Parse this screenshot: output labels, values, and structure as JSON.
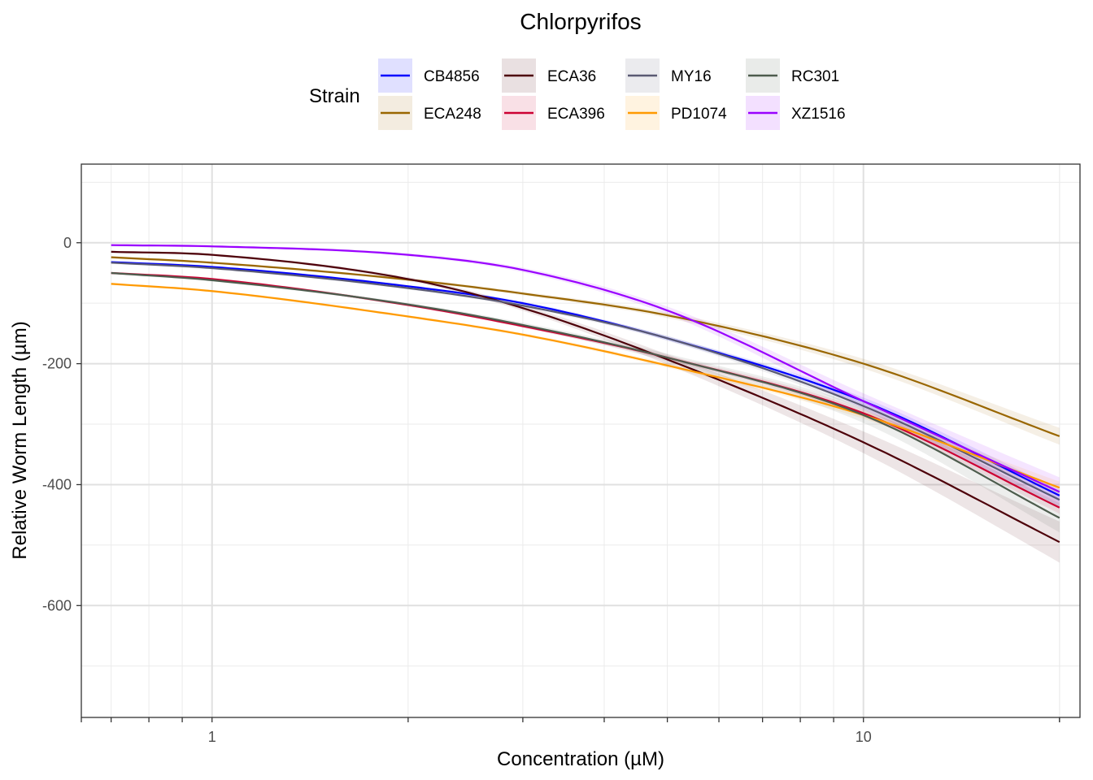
{
  "chart_data": {
    "type": "line",
    "title": "Chlorpyrifos",
    "xlabel": "Concentration (µM)",
    "ylabel": "Relative Worm Length (µm)",
    "x_scale": "log10",
    "xlim": [
      0.63,
      21.5
    ],
    "ylim": [
      -785,
      130
    ],
    "x_ticks": [
      {
        "value": 1,
        "label": "1"
      },
      {
        "value": 10,
        "label": "10"
      }
    ],
    "y_ticks": [
      {
        "value": 0,
        "label": "0"
      },
      {
        "value": -200,
        "label": "-200"
      },
      {
        "value": -400,
        "label": "-400"
      },
      {
        "value": -600,
        "label": "-600"
      }
    ],
    "grid": true,
    "legend": {
      "title": "Strain",
      "placement": "top",
      "entries": [
        "CB4856",
        "ECA248",
        "ECA36",
        "ECA396",
        "MY16",
        "PD1074",
        "RC301",
        "XZ1516"
      ]
    },
    "x": [
      0.7,
      1,
      2,
      3,
      5,
      10,
      20
    ],
    "series": [
      {
        "name": "CB4856",
        "color": "#0000ff",
        "values": [
          -32,
          -40,
          -72,
          -100,
          -158,
          -262,
          -418
        ],
        "band": 8
      },
      {
        "name": "ECA248",
        "color": "#996600",
        "values": [
          -24,
          -33,
          -61,
          -84,
          -120,
          -200,
          -320
        ],
        "band": 12
      },
      {
        "name": "ECA36",
        "color": "#4d0009",
        "values": [
          -15,
          -20,
          -60,
          -108,
          -193,
          -330,
          -495
        ],
        "band": 32
      },
      {
        "name": "ECA396",
        "color": "#cc0033",
        "values": [
          -50,
          -60,
          -103,
          -138,
          -190,
          -282,
          -438
        ],
        "band": 8
      },
      {
        "name": "MY16",
        "color": "#5a5a73",
        "values": [
          -33,
          -42,
          -75,
          -104,
          -158,
          -270,
          -425
        ],
        "band": 10
      },
      {
        "name": "PD1074",
        "color": "#ff9900",
        "values": [
          -68,
          -80,
          -122,
          -152,
          -203,
          -285,
          -405
        ],
        "band": 8
      },
      {
        "name": "RC301",
        "color": "#4d5c4d",
        "values": [
          -50,
          -62,
          -102,
          -136,
          -190,
          -285,
          -455
        ],
        "band": 22
      },
      {
        "name": "XZ1516",
        "color": "#9900ff",
        "values": [
          -4,
          -6,
          -20,
          -45,
          -112,
          -262,
          -412
        ],
        "band": 22
      }
    ]
  }
}
